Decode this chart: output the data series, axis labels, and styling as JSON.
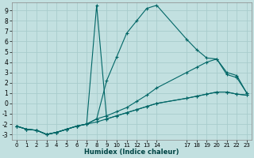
{
  "xlabel": "Humidex (Indice chaleur)",
  "bg_color": "#c2e0e0",
  "grid_color": "#a8cccc",
  "line_color": "#006666",
  "xlim": [
    -0.5,
    23.5
  ],
  "ylim": [
    -3.5,
    9.8
  ],
  "xticks": [
    0,
    1,
    2,
    3,
    4,
    5,
    6,
    7,
    8,
    9,
    10,
    11,
    12,
    13,
    14,
    17,
    18,
    19,
    20,
    21,
    22,
    23
  ],
  "yticks": [
    -3,
    -2,
    -1,
    0,
    1,
    2,
    3,
    4,
    5,
    6,
    7,
    8,
    9
  ],
  "series": [
    {
      "x": [
        0,
        1,
        2,
        3,
        4,
        5,
        6,
        7,
        8,
        9,
        10,
        11,
        12,
        13,
        14,
        17,
        18,
        19,
        20,
        21,
        22,
        23
      ],
      "y": [
        -2.2,
        -2.5,
        -2.6,
        -3.0,
        -2.8,
        -2.5,
        -2.2,
        -2.0,
        -1.8,
        -1.5,
        -1.2,
        -0.9,
        -0.6,
        -0.3,
        0.0,
        0.5,
        0.7,
        0.9,
        1.1,
        1.1,
        0.9,
        0.8
      ]
    },
    {
      "x": [
        0,
        1,
        2,
        3,
        4,
        5,
        6,
        7,
        8,
        9,
        10,
        11,
        12,
        13,
        14,
        17,
        18,
        19,
        20,
        21,
        22,
        23
      ],
      "y": [
        -2.2,
        -2.5,
        -2.6,
        -3.0,
        -2.8,
        -2.5,
        -2.2,
        -2.0,
        9.5,
        -1.5,
        -1.2,
        -0.9,
        -0.6,
        -0.3,
        0.0,
        0.5,
        0.7,
        0.9,
        1.1,
        1.1,
        0.9,
        0.8
      ]
    },
    {
      "x": [
        0,
        1,
        2,
        3,
        4,
        5,
        6,
        7,
        8,
        9,
        10,
        11,
        12,
        13,
        14,
        17,
        18,
        19,
        20,
        21,
        22,
        23
      ],
      "y": [
        -2.2,
        -2.5,
        -2.6,
        -3.0,
        -2.8,
        -2.5,
        -2.2,
        -2.0,
        -1.5,
        2.2,
        4.5,
        6.8,
        8.0,
        9.2,
        9.5,
        6.2,
        5.2,
        4.4,
        4.3,
        3.0,
        2.7,
        1.0
      ]
    },
    {
      "x": [
        0,
        1,
        2,
        3,
        4,
        5,
        6,
        7,
        8,
        9,
        10,
        11,
        12,
        13,
        14,
        17,
        18,
        19,
        20,
        21,
        22,
        23
      ],
      "y": [
        -2.2,
        -2.5,
        -2.6,
        -3.0,
        -2.8,
        -2.5,
        -2.2,
        -2.0,
        -1.5,
        -1.2,
        -0.8,
        -0.4,
        0.2,
        0.8,
        1.5,
        3.0,
        3.5,
        4.0,
        4.3,
        2.8,
        2.5,
        1.0
      ]
    }
  ]
}
